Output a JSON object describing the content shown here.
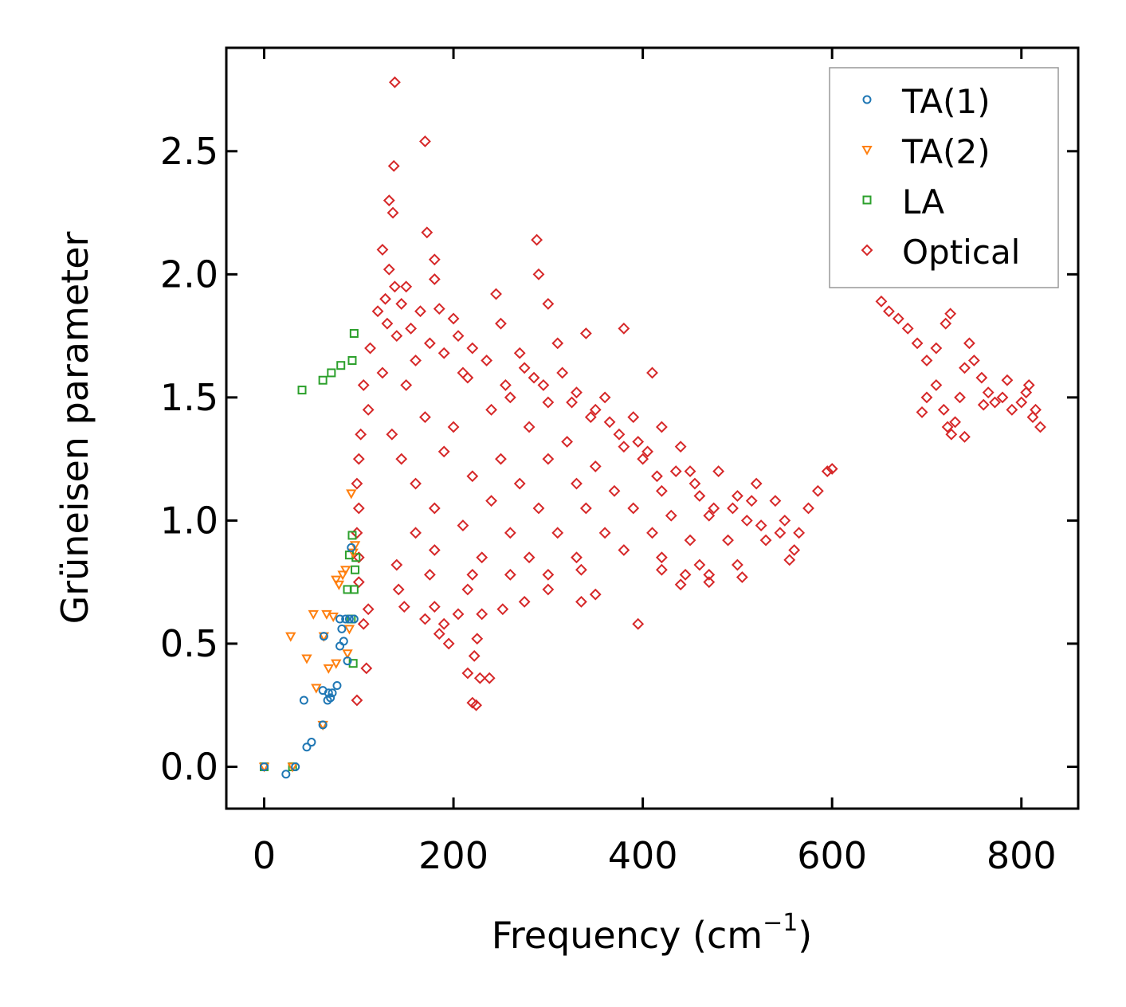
{
  "chart_data": {
    "type": "scatter",
    "title": "",
    "xlabel": "Frequency (cm",
    "xlabel_sup": "−1",
    "xlabel_suffix": ")",
    "ylabel": "Grüneisen parameter",
    "xlim": [
      -40,
      860
    ],
    "ylim": [
      -0.17,
      2.92
    ],
    "xticks": [
      0,
      200,
      400,
      600,
      800
    ],
    "xtick_labels": [
      "0",
      "200",
      "400",
      "600",
      "800"
    ],
    "yticks": [
      0.0,
      0.5,
      1.0,
      1.5,
      2.0,
      2.5
    ],
    "ytick_labels": [
      "0.0",
      "0.5",
      "1.0",
      "1.5",
      "2.0",
      "2.5"
    ],
    "grid": false,
    "legend_position": "top-right",
    "series": [
      {
        "name": "TA(1)",
        "marker": "circle",
        "color": "#1f77b4",
        "points": [
          [
            0,
            0
          ],
          [
            23,
            -0.03
          ],
          [
            33,
            0
          ],
          [
            42,
            0.27
          ],
          [
            45,
            0.08
          ],
          [
            50,
            0.1
          ],
          [
            62,
            0.31
          ],
          [
            62,
            0.17
          ],
          [
            63,
            0.53
          ],
          [
            67,
            0.27
          ],
          [
            68,
            0.3
          ],
          [
            70,
            0.28
          ],
          [
            72,
            0.3
          ],
          [
            77,
            0.33
          ],
          [
            80,
            0.49
          ],
          [
            80,
            0.6
          ],
          [
            82,
            0.56
          ],
          [
            84,
            0.51
          ],
          [
            86,
            0.6
          ],
          [
            88,
            0.43
          ],
          [
            90,
            0.6
          ],
          [
            92,
            0.89
          ],
          [
            95,
            0.6
          ]
        ]
      },
      {
        "name": "TA(2)",
        "marker": "triangle-down",
        "color": "#ff7f0e",
        "points": [
          [
            0,
            0
          ],
          [
            30,
            0
          ],
          [
            28,
            0.53
          ],
          [
            45,
            0.44
          ],
          [
            52,
            0.62
          ],
          [
            55,
            0.32
          ],
          [
            62,
            0.17
          ],
          [
            63,
            0.53
          ],
          [
            66,
            0.62
          ],
          [
            68,
            0.4
          ],
          [
            73,
            0.61
          ],
          [
            76,
            0.42
          ],
          [
            76,
            0.76
          ],
          [
            79,
            0.74
          ],
          [
            83,
            0.78
          ],
          [
            86,
            0.8
          ],
          [
            88,
            0.46
          ],
          [
            90,
            0.56
          ],
          [
            92,
            1.11
          ],
          [
            94,
            0.87
          ],
          [
            96,
            0.9
          ]
        ]
      },
      {
        "name": "LA",
        "marker": "square",
        "color": "#2ca02c",
        "points": [
          [
            0,
            0
          ],
          [
            30,
            0
          ],
          [
            40,
            1.53
          ],
          [
            62,
            1.57
          ],
          [
            71,
            1.6
          ],
          [
            81,
            1.63
          ],
          [
            93,
            1.65
          ],
          [
            95,
            1.76
          ],
          [
            88,
            0.72
          ],
          [
            90,
            0.86
          ],
          [
            92,
            0.6
          ],
          [
            94,
            0.42
          ],
          [
            95,
            0.72
          ],
          [
            96,
            0.8
          ],
          [
            97,
            0.85
          ],
          [
            93,
            0.94
          ]
        ]
      },
      {
        "name": "Optical",
        "marker": "diamond",
        "color": "#d62728",
        "points": [
          [
            138,
            2.78
          ],
          [
            170,
            2.54
          ],
          [
            137,
            2.44
          ],
          [
            132,
            2.3
          ],
          [
            136,
            2.25
          ],
          [
            172,
            2.17
          ],
          [
            288,
            2.14
          ],
          [
            125,
            2.1
          ],
          [
            180,
            2.06
          ],
          [
            290,
            2.0
          ],
          [
            180,
            1.98
          ],
          [
            150,
            1.95
          ],
          [
            245,
            1.92
          ],
          [
            300,
            1.88
          ],
          [
            185,
            1.86
          ],
          [
            120,
            1.85
          ],
          [
            130,
            1.8
          ],
          [
            140,
            1.75
          ],
          [
            200,
            1.82
          ],
          [
            250,
            1.8
          ],
          [
            340,
            1.76
          ],
          [
            380,
            1.78
          ],
          [
            112,
            1.7
          ],
          [
            160,
            1.65
          ],
          [
            220,
            1.7
          ],
          [
            270,
            1.68
          ],
          [
            310,
            1.72
          ],
          [
            410,
            1.6
          ],
          [
            105,
            1.55
          ],
          [
            150,
            1.55
          ],
          [
            210,
            1.6
          ],
          [
            260,
            1.5
          ],
          [
            330,
            1.52
          ],
          [
            360,
            1.5
          ],
          [
            110,
            1.45
          ],
          [
            170,
            1.42
          ],
          [
            240,
            1.45
          ],
          [
            300,
            1.48
          ],
          [
            350,
            1.45
          ],
          [
            390,
            1.42
          ],
          [
            420,
            1.38
          ],
          [
            102,
            1.35
          ],
          [
            135,
            1.35
          ],
          [
            200,
            1.38
          ],
          [
            280,
            1.38
          ],
          [
            320,
            1.32
          ],
          [
            380,
            1.3
          ],
          [
            440,
            1.3
          ],
          [
            100,
            1.25
          ],
          [
            145,
            1.25
          ],
          [
            190,
            1.28
          ],
          [
            250,
            1.25
          ],
          [
            300,
            1.25
          ],
          [
            350,
            1.22
          ],
          [
            400,
            1.25
          ],
          [
            450,
            1.2
          ],
          [
            480,
            1.2
          ],
          [
            520,
            1.15
          ],
          [
            98,
            1.15
          ],
          [
            160,
            1.15
          ],
          [
            220,
            1.18
          ],
          [
            270,
            1.15
          ],
          [
            330,
            1.15
          ],
          [
            370,
            1.12
          ],
          [
            420,
            1.12
          ],
          [
            460,
            1.1
          ],
          [
            500,
            1.1
          ],
          [
            540,
            1.08
          ],
          [
            100,
            1.05
          ],
          [
            180,
            1.05
          ],
          [
            240,
            1.08
          ],
          [
            290,
            1.05
          ],
          [
            340,
            1.05
          ],
          [
            390,
            1.05
          ],
          [
            430,
            1.02
          ],
          [
            470,
            1.02
          ],
          [
            510,
            1.0
          ],
          [
            550,
            1.0
          ],
          [
            98,
            0.95
          ],
          [
            160,
            0.95
          ],
          [
            210,
            0.98
          ],
          [
            260,
            0.95
          ],
          [
            310,
            0.95
          ],
          [
            360,
            0.95
          ],
          [
            410,
            0.95
          ],
          [
            450,
            0.92
          ],
          [
            490,
            0.92
          ],
          [
            530,
            0.92
          ],
          [
            560,
            0.88
          ],
          [
            100,
            0.85
          ],
          [
            180,
            0.88
          ],
          [
            230,
            0.85
          ],
          [
            280,
            0.85
          ],
          [
            330,
            0.85
          ],
          [
            380,
            0.88
          ],
          [
            420,
            0.85
          ],
          [
            460,
            0.82
          ],
          [
            500,
            0.82
          ],
          [
            555,
            0.84
          ],
          [
            100,
            0.75
          ],
          [
            140,
            0.82
          ],
          [
            175,
            0.78
          ],
          [
            220,
            0.78
          ],
          [
            260,
            0.78
          ],
          [
            300,
            0.78
          ],
          [
            335,
            0.8
          ],
          [
            420,
            0.8
          ],
          [
            445,
            0.78
          ],
          [
            470,
            0.78
          ],
          [
            505,
            0.77
          ],
          [
            110,
            0.64
          ],
          [
            142,
            0.72
          ],
          [
            148,
            0.65
          ],
          [
            180,
            0.65
          ],
          [
            215,
            0.72
          ],
          [
            252,
            0.64
          ],
          [
            275,
            0.67
          ],
          [
            300,
            0.72
          ],
          [
            335,
            0.67
          ],
          [
            395,
            0.58
          ],
          [
            105,
            0.58
          ],
          [
            170,
            0.6
          ],
          [
            190,
            0.58
          ],
          [
            205,
            0.62
          ],
          [
            230,
            0.62
          ],
          [
            185,
            0.54
          ],
          [
            195,
            0.5
          ],
          [
            225,
            0.52
          ],
          [
            222,
            0.45
          ],
          [
            215,
            0.38
          ],
          [
            228,
            0.36
          ],
          [
            238,
            0.36
          ],
          [
            108,
            0.4
          ],
          [
            98,
            0.27
          ],
          [
            220,
            0.26
          ],
          [
            224,
            0.25
          ],
          [
            470,
            0.75
          ],
          [
            440,
            0.74
          ],
          [
            350,
            0.7
          ],
          [
            125,
            1.6
          ],
          [
            128,
            1.9
          ],
          [
            132,
            2.02
          ],
          [
            138,
            1.95
          ],
          [
            145,
            1.88
          ],
          [
            155,
            1.78
          ],
          [
            165,
            1.85
          ],
          [
            175,
            1.72
          ],
          [
            190,
            1.68
          ],
          [
            205,
            1.75
          ],
          [
            215,
            1.58
          ],
          [
            235,
            1.65
          ],
          [
            255,
            1.55
          ],
          [
            275,
            1.62
          ],
          [
            285,
            1.58
          ],
          [
            295,
            1.55
          ],
          [
            315,
            1.6
          ],
          [
            325,
            1.48
          ],
          [
            345,
            1.42
          ],
          [
            365,
            1.4
          ],
          [
            375,
            1.35
          ],
          [
            395,
            1.32
          ],
          [
            405,
            1.28
          ],
          [
            415,
            1.18
          ],
          [
            435,
            1.2
          ],
          [
            455,
            1.15
          ],
          [
            475,
            1.05
          ],
          [
            495,
            1.05
          ],
          [
            515,
            1.08
          ],
          [
            525,
            0.98
          ],
          [
            545,
            0.95
          ],
          [
            565,
            0.95
          ],
          [
            575,
            1.05
          ],
          [
            585,
            1.12
          ],
          [
            595,
            1.2
          ],
          [
            600,
            1.21
          ],
          [
            652,
            1.89
          ],
          [
            660,
            1.85
          ],
          [
            670,
            1.82
          ],
          [
            680,
            1.78
          ],
          [
            690,
            1.72
          ],
          [
            700,
            1.65
          ],
          [
            710,
            1.55
          ],
          [
            718,
            1.45
          ],
          [
            722,
            1.38
          ],
          [
            726,
            1.35
          ],
          [
            730,
            1.4
          ],
          [
            735,
            1.5
          ],
          [
            740,
            1.62
          ],
          [
            745,
            1.72
          ],
          [
            750,
            1.65
          ],
          [
            758,
            1.58
          ],
          [
            765,
            1.52
          ],
          [
            772,
            1.48
          ],
          [
            780,
            1.5
          ],
          [
            790,
            1.45
          ],
          [
            800,
            1.48
          ],
          [
            808,
            1.55
          ],
          [
            815,
            1.45
          ],
          [
            820,
            1.38
          ],
          [
            700,
            1.5
          ],
          [
            710,
            1.7
          ],
          [
            725,
            1.84
          ],
          [
            720,
            1.8
          ],
          [
            740,
            1.34
          ],
          [
            695,
            1.44
          ],
          [
            760,
            1.47
          ],
          [
            785,
            1.57
          ],
          [
            805,
            1.52
          ],
          [
            812,
            1.42
          ]
        ]
      }
    ]
  }
}
